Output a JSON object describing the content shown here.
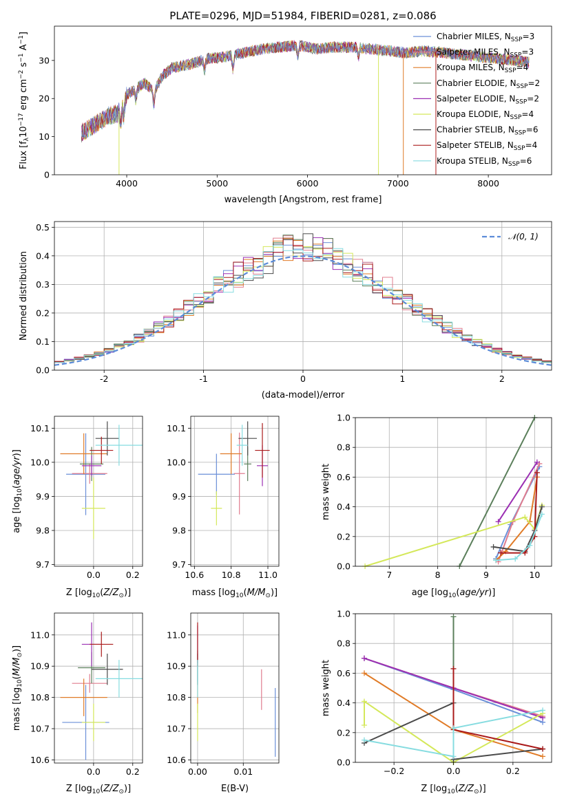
{
  "title": "PLATE=0296, MJD=51984, FIBERID=0281, z=0.086",
  "colors": {
    "Chabrier MILES": "#6a8fd8",
    "Salpeter MILES": "#e07c8e",
    "Kroupa MILES": "#e07b27",
    "Chabrier ELODIE": "#5b7f5b",
    "Salpeter ELODIE": "#9b2fb3",
    "Kroupa ELODIE": "#d4e85a",
    "Chabrier STELIB": "#4a4a4a",
    "Salpeter STELIB": "#aa1a1a",
    "Kroupa STELIB": "#86dce0",
    "gauss": "#5b8bd8"
  },
  "chart_data": [
    {
      "type": "line",
      "id": "spectrum",
      "xlabel": "wavelength [Angstrom, rest frame]",
      "ylabel": "Flux [f_λ10^-17 erg cm^-2 s^-1 A^-1]",
      "xlim": [
        3200,
        8700
      ],
      "ylim": [
        0,
        39
      ],
      "xticks": [
        4000,
        5000,
        6000,
        7000,
        8000
      ],
      "yticks": [
        0,
        10,
        20,
        30
      ],
      "envelope": {
        "x": [
          3500,
          3600,
          3700,
          3800,
          3900,
          4000,
          4100,
          4200,
          4300,
          4400,
          4500,
          4700,
          4900,
          5100,
          5300,
          5500,
          5700,
          5900,
          6100,
          6300,
          6500,
          6700,
          6900,
          7100,
          7300,
          7500,
          7700,
          7900,
          8100,
          8300,
          8450
        ],
        "y": [
          11,
          12.5,
          14,
          15.5,
          16,
          21,
          22.5,
          24,
          22,
          26,
          28,
          29,
          30.5,
          31,
          32,
          33,
          33.5,
          34,
          33,
          33.5,
          33.5,
          33,
          32.5,
          32,
          32.5,
          32,
          31.5,
          31,
          30.5,
          30,
          29.5
        ]
      },
      "series_legend": [
        "Chabrier MILES, N_SSP=3",
        "Salpeter MILES, N_SSP=3",
        "Kroupa MILES, N_SSP=4",
        "Chabrier ELODIE, N_SSP=2",
        "Salpeter ELODIE, N_SSP=2",
        "Kroupa ELODIE, N_SSP=4",
        "Chabrier STELIB, N_SSP=6",
        "Salpeter STELIB, N_SSP=4",
        "Kroupa STELIB, N_SSP=6"
      ]
    },
    {
      "type": "line",
      "id": "residuals",
      "xlabel": "(data-model)/error",
      "ylabel": "Normed distribution",
      "xlim": [
        -2.5,
        2.5
      ],
      "ylim": [
        0,
        0.52
      ],
      "xticks": [
        -2,
        -1,
        0,
        1,
        2
      ],
      "yticks": [
        0.0,
        0.1,
        0.2,
        0.3,
        0.4,
        0.5
      ],
      "gauss_label": "𝒩(0, 1)",
      "bin_edges_start": -2.5,
      "bin_width": 0.1
    },
    {
      "type": "scatter",
      "id": "age-vs-Z",
      "xlabel": "Z [log10(Z/Z⊙)]",
      "ylabel": "age  [log10(age/yr)]",
      "xlim": [
        -0.2,
        0.25
      ],
      "ylim": [
        9.695,
        10.135
      ],
      "xticks": [
        0.0,
        0.2
      ],
      "yticks": [
        9.7,
        9.8,
        9.9,
        10.0,
        10.1
      ],
      "points": [
        {
          "model": "Chabrier MILES",
          "x": -0.04,
          "y": 9.965,
          "xerr": 0.1,
          "yerr": 0.12
        },
        {
          "model": "Salpeter MILES",
          "x": -0.02,
          "y": 9.967,
          "xerr": 0.09,
          "yerr": 0.03
        },
        {
          "model": "Kroupa MILES",
          "x": -0.05,
          "y": 10.025,
          "xerr": 0.12,
          "yerr": 0.06
        },
        {
          "model": "Chabrier ELODIE",
          "x": -0.01,
          "y": 9.995,
          "xerr": 0.06,
          "yerr": 0.05
        },
        {
          "model": "Salpeter ELODIE",
          "x": -0.01,
          "y": 9.99,
          "xerr": 0.05,
          "yerr": 0.03
        },
        {
          "model": "Kroupa ELODIE",
          "x": 0.0,
          "y": 9.865,
          "xerr": 0.06,
          "yerr": 0.09
        },
        {
          "model": "Chabrier STELIB",
          "x": 0.07,
          "y": 10.07,
          "xerr": 0.06,
          "yerr": 0.05
        },
        {
          "model": "Salpeter STELIB",
          "x": 0.04,
          "y": 10.035,
          "xerr": 0.06,
          "yerr": 0.04
        },
        {
          "model": "Kroupa STELIB",
          "x": 0.13,
          "y": 10.05,
          "xerr": 0.12,
          "yerr": 0.06
        }
      ]
    },
    {
      "type": "scatter",
      "id": "age-vs-mass",
      "xlabel": "mass [log10(M/M⊙)]",
      "ylabel": "",
      "xlim": [
        10.58,
        11.06
      ],
      "ylim": [
        9.695,
        10.135
      ],
      "xticks": [
        10.6,
        10.8,
        11.0
      ],
      "yticks": [
        9.7,
        9.8,
        9.9,
        10.0,
        10.1
      ],
      "points": [
        {
          "model": "Chabrier MILES",
          "x": 10.72,
          "y": 9.965,
          "xerr": 0.1,
          "yerr": 0.06
        },
        {
          "model": "Salpeter MILES",
          "x": 10.845,
          "y": 9.967,
          "xerr": 0.03,
          "yerr": 0.12
        },
        {
          "model": "Kroupa MILES",
          "x": 10.8,
          "y": 10.025,
          "xerr": 0.06,
          "yerr": 0.06
        },
        {
          "model": "Chabrier ELODIE",
          "x": 10.89,
          "y": 9.995,
          "xerr": 0.02,
          "yerr": 0.05
        },
        {
          "model": "Salpeter ELODIE",
          "x": 10.97,
          "y": 9.99,
          "xerr": 0.03,
          "yerr": 0.06
        },
        {
          "model": "Kroupa ELODIE",
          "x": 10.72,
          "y": 9.865,
          "xerr": 0.03,
          "yerr": 0.05
        },
        {
          "model": "Chabrier STELIB",
          "x": 10.89,
          "y": 10.07,
          "xerr": 0.05,
          "yerr": 0.05
        },
        {
          "model": "Salpeter STELIB",
          "x": 10.97,
          "y": 10.035,
          "xerr": 0.04,
          "yerr": 0.08
        },
        {
          "model": "Kroupa STELIB",
          "x": 10.86,
          "y": 10.05,
          "xerr": 0.03,
          "yerr": 0.06
        }
      ]
    },
    {
      "type": "line",
      "id": "massweight-vs-age",
      "xlabel": "age  [log10(age/yr)]",
      "ylabel": "mass weight",
      "xlim": [
        6.3,
        10.35
      ],
      "ylim": [
        0,
        1
      ],
      "xticks": [
        7,
        8,
        9,
        10
      ],
      "yticks": [
        0.0,
        0.2,
        0.4,
        0.6,
        0.8,
        1.0
      ],
      "series": [
        {
          "model": "Chabrier MILES",
          "x": [
            9.2,
            9.5,
            10.1
          ],
          "y": [
            0.05,
            0.28,
            0.67
          ]
        },
        {
          "model": "Salpeter MILES",
          "x": [
            9.25,
            9.55,
            10.1
          ],
          "y": [
            0.03,
            0.3,
            0.69
          ]
        },
        {
          "model": "Kroupa MILES",
          "x": [
            9.2,
            9.4,
            9.9,
            10.05
          ],
          "y": [
            0.04,
            0.1,
            0.3,
            0.6
          ]
        },
        {
          "model": "Chabrier ELODIE",
          "x": [
            8.45,
            10.0
          ],
          "y": [
            0.0,
            1.0
          ]
        },
        {
          "model": "Salpeter ELODIE",
          "x": [
            9.25,
            10.05
          ],
          "y": [
            0.3,
            0.7
          ]
        },
        {
          "model": "Kroupa ELODIE",
          "x": [
            6.5,
            9.8,
            10.0,
            10.15
          ],
          "y": [
            0.0,
            0.33,
            0.25,
            0.41
          ]
        },
        {
          "model": "Chabrier STELIB",
          "x": [
            9.15,
            9.8,
            10.0,
            10.15
          ],
          "y": [
            0.13,
            0.1,
            0.24,
            0.4
          ]
        },
        {
          "model": "Salpeter STELIB",
          "x": [
            9.3,
            9.8,
            10.0,
            10.05
          ],
          "y": [
            0.09,
            0.09,
            0.2,
            0.63
          ]
        },
        {
          "model": "Kroupa STELIB",
          "x": [
            9.2,
            9.6,
            9.9,
            10.15
          ],
          "y": [
            0.04,
            0.05,
            0.14,
            0.35
          ]
        }
      ]
    },
    {
      "type": "scatter",
      "id": "mass-vs-Z",
      "xlabel": "Z [log10(Z/Z⊙)]",
      "ylabel": "mass [log10(M/M⊙)]",
      "xlim": [
        -0.2,
        0.25
      ],
      "ylim": [
        10.59,
        11.07
      ],
      "xticks": [
        0.0,
        0.2
      ],
      "yticks": [
        10.6,
        10.7,
        10.8,
        10.9,
        11.0
      ],
      "points": [
        {
          "model": "Chabrier MILES",
          "x": -0.04,
          "y": 10.72,
          "xerr": 0.12,
          "yerr": 0.12
        },
        {
          "model": "Salpeter MILES",
          "x": -0.02,
          "y": 10.845,
          "xerr": 0.09,
          "yerr": 0.03
        },
        {
          "model": "Kroupa MILES",
          "x": -0.05,
          "y": 10.8,
          "xerr": 0.12,
          "yerr": 0.06
        },
        {
          "model": "Chabrier ELODIE",
          "x": -0.01,
          "y": 10.895,
          "xerr": 0.07,
          "yerr": 0.05
        },
        {
          "model": "Salpeter ELODIE",
          "x": -0.01,
          "y": 10.97,
          "xerr": 0.05,
          "yerr": 0.07
        },
        {
          "model": "Kroupa ELODIE",
          "x": 0.0,
          "y": 10.72,
          "xerr": 0.06,
          "yerr": 0.06
        },
        {
          "model": "Chabrier STELIB",
          "x": 0.07,
          "y": 10.89,
          "xerr": 0.08,
          "yerr": 0.05
        },
        {
          "model": "Salpeter STELIB",
          "x": 0.04,
          "y": 10.97,
          "xerr": 0.06,
          "yerr": 0.04
        },
        {
          "model": "Kroupa STELIB",
          "x": 0.13,
          "y": 10.86,
          "xerr": 0.12,
          "yerr": 0.06
        }
      ]
    },
    {
      "type": "scatter",
      "id": "mass-vs-EBV",
      "xlabel": "E(B-V)",
      "ylabel": "",
      "xlim": [
        -0.0015,
        0.0178
      ],
      "ylim": [
        10.59,
        11.07
      ],
      "xticks": [
        0.0,
        0.01
      ],
      "tick_labels": [
        "0.00",
        "0.01"
      ],
      "yticks": [
        10.6,
        10.7,
        10.8,
        10.9,
        11.0
      ],
      "points": [
        {
          "model": "Chabrier MILES",
          "x": 0.017,
          "y": 10.72,
          "yerr": 0.11
        },
        {
          "model": "Salpeter MILES",
          "x": 0.014,
          "y": 10.825,
          "yerr": 0.065
        },
        {
          "model": "Kroupa MILES",
          "x": 0.0,
          "y": 10.8,
          "yerr": 0.05
        },
        {
          "model": "Chabrier ELODIE",
          "x": 0.0,
          "y": 10.9,
          "yerr": 0.05
        },
        {
          "model": "Salpeter ELODIE",
          "x": 0.0,
          "y": 10.97,
          "yerr": 0.06
        },
        {
          "model": "Kroupa ELODIE",
          "x": 0.0,
          "y": 10.72,
          "yerr": 0.06
        },
        {
          "model": "Chabrier STELIB",
          "x": 0.0,
          "y": 10.89,
          "yerr": 0.05
        },
        {
          "model": "Salpeter STELIB",
          "x": 0.0,
          "y": 10.97,
          "yerr": 0.07
        },
        {
          "model": "Kroupa STELIB",
          "x": 0.0,
          "y": 10.86,
          "yerr": 0.06
        }
      ]
    },
    {
      "type": "line",
      "id": "massweight-vs-Z",
      "xlabel": "Z [log10(Z/Z⊙)]",
      "ylabel": "mass weight",
      "xlim": [
        -0.33,
        0.33
      ],
      "ylim": [
        0,
        1
      ],
      "xticks": [
        -0.2,
        0.0,
        0.2
      ],
      "tick_labels": [
        "−0.2",
        "0.0",
        "0.2"
      ],
      "yticks": [
        0.0,
        0.2,
        0.4,
        0.6,
        0.8,
        1.0
      ],
      "series": [
        {
          "model": "Chabrier MILES",
          "x": [
            -0.3,
            0.0,
            0.3
          ],
          "y": [
            0.7,
            0.49,
            0.27
          ]
        },
        {
          "model": "Salpeter MILES",
          "x": [
            -0.3,
            0.0,
            0.3
          ],
          "y": [
            0.7,
            0.5,
            0.31
          ]
        },
        {
          "model": "Kroupa MILES",
          "x": [
            -0.3,
            0.0,
            0.3
          ],
          "y": [
            0.6,
            0.22,
            0.04
          ]
        },
        {
          "model": "Chabrier ELODIE",
          "x": [
            0.0,
            0.0
          ],
          "y": [
            0.0,
            0.98
          ]
        },
        {
          "model": "Salpeter ELODIE",
          "x": [
            -0.3,
            0.0,
            0.3
          ],
          "y": [
            0.7,
            0.5,
            0.3
          ]
        },
        {
          "model": "Kroupa ELODIE",
          "x": [
            -0.3,
            -0.3,
            0.0,
            0.3
          ],
          "y": [
            0.25,
            0.41,
            0.0,
            0.33
          ]
        },
        {
          "model": "Chabrier STELIB",
          "x": [
            -0.3,
            0.0,
            0.0,
            0.3
          ],
          "y": [
            0.13,
            0.4,
            0.02,
            0.09
          ]
        },
        {
          "model": "Salpeter STELIB",
          "x": [
            0.0,
            0.0,
            0.3
          ],
          "y": [
            0.63,
            0.22,
            0.09
          ]
        },
        {
          "model": "Kroupa STELIB",
          "x": [
            -0.3,
            0.0,
            0.0,
            0.3
          ],
          "y": [
            0.15,
            0.04,
            0.23,
            0.35
          ]
        }
      ]
    }
  ]
}
